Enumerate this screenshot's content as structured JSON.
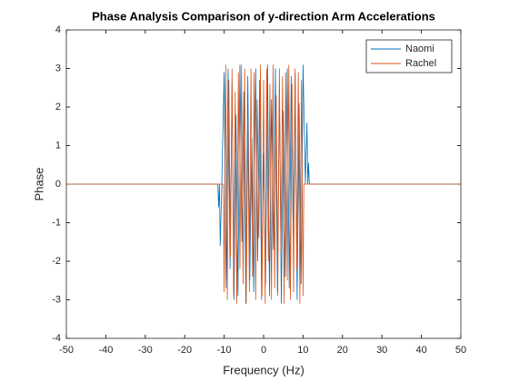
{
  "chart_data": {
    "type": "line",
    "title": "Phase Analysis Comparison of y-direction Arm Accelerations",
    "x_label": "Frequency (Hz)",
    "y_label": "Phase",
    "xlim": [
      -50,
      50
    ],
    "xticks": [
      -50,
      -40,
      -30,
      -20,
      -10,
      0,
      10,
      20,
      30,
      40,
      50
    ],
    "ylim": [
      -4,
      4
    ],
    "yticks": [
      -4,
      -3,
      -2,
      -1,
      0,
      1,
      2,
      3,
      4
    ],
    "grid": false,
    "legend": "upper right",
    "series": [
      {
        "name": "Naomi",
        "color": "#0072bd",
        "x": [
          -50,
          -11.6,
          -11.4,
          -11.2,
          -11,
          -10.6,
          -10,
          -9.5,
          -9,
          -8.5,
          -8,
          -7.5,
          -7,
          -6.5,
          -6,
          -5.5,
          -5,
          -4.5,
          -4,
          -3.5,
          -3,
          -2.5,
          -2,
          -1.5,
          -1,
          -0.5,
          0,
          0.5,
          1,
          1.5,
          2,
          2.5,
          3,
          3.5,
          4,
          4.5,
          5,
          5.5,
          6,
          6.5,
          7,
          7.5,
          8,
          8.5,
          9,
          9.5,
          10,
          10.6,
          11,
          11.2,
          11.4,
          11.6,
          50
        ],
        "values": [
          0,
          0,
          -0.6,
          0,
          -1.6,
          0,
          2.9,
          -2.7,
          3.0,
          -2.2,
          2.6,
          -3.0,
          1.8,
          -2.9,
          3.1,
          -1.5,
          2.4,
          -3.1,
          2.8,
          -2.5,
          1.2,
          -2.8,
          3.0,
          -2.0,
          2.7,
          -3.0,
          0.8,
          -2.6,
          3.1,
          -2.9,
          2.2,
          -1.7,
          3.0,
          -2.8,
          2.5,
          -3.1,
          1.9,
          -2.4,
          3.0,
          -2.7,
          2.8,
          -1.3,
          2.9,
          -3.0,
          2.1,
          -2.6,
          3.1,
          0,
          1.6,
          0,
          0.55,
          0,
          0
        ]
      },
      {
        "name": "Rachel",
        "color": "#d95319",
        "x": [
          -50,
          -10.2,
          -10,
          -9.6,
          -9.2,
          -8.8,
          -8.4,
          -8,
          -7.6,
          -7.2,
          -6.8,
          -6.4,
          -6,
          -5.6,
          -5.2,
          -4.8,
          -4.4,
          -4,
          -3.6,
          -3.2,
          -2.8,
          -2.4,
          -2,
          -1.6,
          -1.2,
          -0.8,
          -0.4,
          0,
          0.4,
          0.8,
          1.2,
          1.6,
          2,
          2.4,
          2.8,
          3.2,
          3.6,
          4,
          4.4,
          4.8,
          5.2,
          5.6,
          6,
          6.4,
          6.8,
          7.2,
          7.6,
          8,
          8.4,
          8.8,
          9.2,
          9.6,
          10,
          10.2,
          50
        ],
        "values": [
          0,
          0,
          -2.8,
          3.1,
          -3.0,
          2.7,
          -1.9,
          3.0,
          -2.9,
          2.4,
          -3.1,
          2.9,
          -2.2,
          3.1,
          -2.6,
          3.0,
          -3.1,
          1.6,
          -2.8,
          3.0,
          -2.4,
          2.9,
          -3.0,
          2.2,
          -1.4,
          3.1,
          -2.9,
          2.7,
          -3.1,
          3.0,
          -2.0,
          2.6,
          -3.0,
          3.1,
          -2.7,
          2.3,
          -2.9,
          3.0,
          -1.8,
          2.8,
          -3.1,
          2.9,
          -2.5,
          3.1,
          -3.0,
          2.6,
          -2.8,
          3.0,
          -2.2,
          2.9,
          -3.1,
          2.7,
          -2.9,
          0,
          0
        ]
      }
    ]
  }
}
